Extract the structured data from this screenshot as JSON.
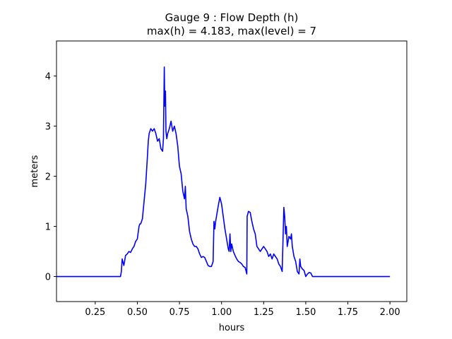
{
  "chart_data": {
    "type": "line",
    "title_line1": "Gauge 9 : Flow Depth (h)",
    "title_line2": "max(h) =   4.183,    max(level) = 7",
    "xlabel": "hours",
    "ylabel": "meters",
    "xlim": [
      0.02,
      2.1
    ],
    "ylim": [
      -0.5,
      4.7
    ],
    "xticks": [
      0.25,
      0.5,
      0.75,
      1.0,
      1.25,
      1.5,
      1.75,
      2.0
    ],
    "xtick_labels": [
      "0.25",
      "0.50",
      "0.75",
      "1.00",
      "1.25",
      "1.50",
      "1.75",
      "2.00"
    ],
    "yticks": [
      0,
      1,
      2,
      3,
      4
    ],
    "ytick_labels": [
      "0",
      "1",
      "2",
      "3",
      "4"
    ],
    "grid": false,
    "series": [
      {
        "color": "#0000ff",
        "x": [
          0.02,
          0.4,
          0.405,
          0.41,
          0.42,
          0.43,
          0.44,
          0.45,
          0.46,
          0.47,
          0.48,
          0.49,
          0.5,
          0.51,
          0.515,
          0.52,
          0.53,
          0.54,
          0.55,
          0.56,
          0.565,
          0.57,
          0.58,
          0.59,
          0.6,
          0.61,
          0.62,
          0.63,
          0.64,
          0.65,
          0.655,
          0.66,
          0.663,
          0.667,
          0.67,
          0.675,
          0.68,
          0.69,
          0.7,
          0.71,
          0.72,
          0.73,
          0.74,
          0.75,
          0.76,
          0.77,
          0.78,
          0.785,
          0.79,
          0.8,
          0.81,
          0.82,
          0.83,
          0.84,
          0.85,
          0.86,
          0.87,
          0.88,
          0.89,
          0.9,
          0.91,
          0.92,
          0.93,
          0.94,
          0.95,
          0.955,
          0.96,
          0.965,
          0.97,
          0.98,
          0.99,
          1.0,
          1.01,
          1.02,
          1.03,
          1.04,
          1.045,
          1.05,
          1.055,
          1.06,
          1.07,
          1.08,
          1.09,
          1.1,
          1.11,
          1.12,
          1.13,
          1.14,
          1.15,
          1.152,
          1.16,
          1.17,
          1.18,
          1.19,
          1.2,
          1.21,
          1.22,
          1.23,
          1.24,
          1.25,
          1.26,
          1.27,
          1.28,
          1.29,
          1.3,
          1.31,
          1.32,
          1.33,
          1.34,
          1.35,
          1.36,
          1.37,
          1.375,
          1.38,
          1.385,
          1.39,
          1.4,
          1.41,
          1.415,
          1.42,
          1.43,
          1.44,
          1.45,
          1.46,
          1.465,
          1.47,
          1.48,
          1.49,
          1.5,
          1.51,
          1.52,
          1.53,
          1.54,
          1.55,
          1.6,
          2.0
        ],
        "y": [
          0.0,
          0.0,
          0.1,
          0.35,
          0.22,
          0.42,
          0.45,
          0.5,
          0.48,
          0.55,
          0.6,
          0.7,
          0.75,
          1.0,
          1.05,
          1.05,
          1.15,
          1.5,
          1.85,
          2.4,
          2.7,
          2.85,
          2.95,
          2.9,
          2.95,
          2.85,
          2.7,
          2.75,
          2.55,
          2.5,
          2.75,
          4.18,
          3.4,
          3.7,
          2.9,
          2.75,
          2.85,
          2.95,
          3.1,
          2.9,
          3.0,
          2.85,
          2.6,
          2.2,
          2.05,
          1.7,
          1.55,
          1.8,
          1.35,
          1.2,
          0.9,
          0.75,
          0.65,
          0.6,
          0.6,
          0.55,
          0.45,
          0.38,
          0.4,
          0.38,
          0.3,
          0.22,
          0.2,
          0.2,
          0.3,
          1.1,
          0.95,
          1.1,
          1.2,
          1.4,
          1.58,
          1.45,
          1.2,
          0.95,
          0.75,
          0.55,
          0.5,
          0.85,
          0.5,
          0.65,
          0.5,
          0.42,
          0.35,
          0.3,
          0.28,
          0.25,
          0.2,
          0.18,
          0.05,
          1.2,
          1.3,
          1.28,
          1.1,
          0.95,
          0.85,
          0.6,
          0.55,
          0.5,
          0.55,
          0.6,
          0.55,
          0.5,
          0.4,
          0.45,
          0.35,
          0.45,
          0.4,
          0.35,
          0.25,
          0.2,
          0.1,
          1.38,
          1.2,
          0.85,
          1.0,
          0.6,
          0.8,
          0.75,
          0.85,
          0.6,
          0.4,
          0.3,
          0.1,
          0.05,
          0.35,
          0.2,
          0.15,
          0.12,
          0.0,
          0.05,
          0.08,
          0.07,
          0.0,
          0.0,
          0.0,
          0.0
        ]
      }
    ]
  }
}
